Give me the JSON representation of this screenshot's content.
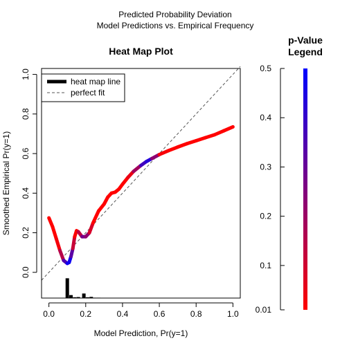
{
  "header": {
    "title_line1": "Predicted Probability Deviation",
    "title_line2": "Model Predictions vs. Empirical Frequency"
  },
  "chart_data": [
    {
      "type": "line",
      "title": "Heat Map Plot",
      "xlabel": "Model Prediction, Pr(y=1)",
      "ylabel": "Smoothed Empirical Pr(y=1)",
      "xlim": [
        -0.04,
        1.04
      ],
      "ylim": [
        -0.13,
        1.03
      ],
      "x_ticks": [
        0.0,
        0.2,
        0.4,
        0.6,
        0.8,
        1.0
      ],
      "x_tick_labels": [
        "0.0",
        "0.2",
        "0.4",
        "0.6",
        "0.8",
        "1.0"
      ],
      "y_ticks": [
        0.0,
        0.2,
        0.4,
        0.6,
        0.8,
        1.0
      ],
      "y_tick_labels": [
        "0.0",
        "0.2",
        "0.4",
        "0.6",
        "0.8",
        "1.0"
      ],
      "grid": false,
      "legend": {
        "position": "top-left",
        "entries": [
          {
            "label": "heat map line",
            "style": "thick-solid"
          },
          {
            "label": "perfect fit",
            "style": "dashed"
          }
        ]
      },
      "series": [
        {
          "name": "heat map line",
          "style": "thick-solid",
          "points": [
            {
              "x": 0.0,
              "y": 0.275,
              "p": 0.0
            },
            {
              "x": 0.02,
              "y": 0.23,
              "p": 0.0
            },
            {
              "x": 0.04,
              "y": 0.17,
              "p": 0.01
            },
            {
              "x": 0.06,
              "y": 0.11,
              "p": 0.05
            },
            {
              "x": 0.08,
              "y": 0.06,
              "p": 0.25
            },
            {
              "x": 0.1,
              "y": 0.045,
              "p": 0.45
            },
            {
              "x": 0.11,
              "y": 0.05,
              "p": 0.5
            },
            {
              "x": 0.12,
              "y": 0.08,
              "p": 0.45
            },
            {
              "x": 0.13,
              "y": 0.12,
              "p": 0.2
            },
            {
              "x": 0.14,
              "y": 0.18,
              "p": 0.03
            },
            {
              "x": 0.15,
              "y": 0.21,
              "p": 0.0
            },
            {
              "x": 0.16,
              "y": 0.205,
              "p": 0.02
            },
            {
              "x": 0.18,
              "y": 0.18,
              "p": 0.25
            },
            {
              "x": 0.2,
              "y": 0.18,
              "p": 0.3
            },
            {
              "x": 0.22,
              "y": 0.2,
              "p": 0.15
            },
            {
              "x": 0.24,
              "y": 0.25,
              "p": 0.02
            },
            {
              "x": 0.27,
              "y": 0.31,
              "p": 0.0
            },
            {
              "x": 0.3,
              "y": 0.345,
              "p": 0.0
            },
            {
              "x": 0.32,
              "y": 0.38,
              "p": 0.0
            },
            {
              "x": 0.34,
              "y": 0.4,
              "p": 0.0
            },
            {
              "x": 0.36,
              "y": 0.405,
              "p": 0.0
            },
            {
              "x": 0.38,
              "y": 0.42,
              "p": 0.0
            },
            {
              "x": 0.4,
              "y": 0.445,
              "p": 0.0
            },
            {
              "x": 0.43,
              "y": 0.48,
              "p": 0.02
            },
            {
              "x": 0.46,
              "y": 0.51,
              "p": 0.08
            },
            {
              "x": 0.5,
              "y": 0.54,
              "p": 0.3
            },
            {
              "x": 0.53,
              "y": 0.56,
              "p": 0.45
            },
            {
              "x": 0.56,
              "y": 0.575,
              "p": 0.4
            },
            {
              "x": 0.6,
              "y": 0.595,
              "p": 0.05
            },
            {
              "x": 0.65,
              "y": 0.615,
              "p": 0.0
            },
            {
              "x": 0.7,
              "y": 0.633,
              "p": 0.0
            },
            {
              "x": 0.75,
              "y": 0.65,
              "p": 0.0
            },
            {
              "x": 0.8,
              "y": 0.665,
              "p": 0.0
            },
            {
              "x": 0.85,
              "y": 0.68,
              "p": 0.0
            },
            {
              "x": 0.9,
              "y": 0.695,
              "p": 0.0
            },
            {
              "x": 0.95,
              "y": 0.715,
              "p": 0.0
            },
            {
              "x": 1.0,
              "y": 0.735,
              "p": 0.0
            }
          ]
        },
        {
          "name": "perfect fit",
          "style": "dashed",
          "points": [
            {
              "x": -0.04,
              "y": -0.04
            },
            {
              "x": 1.04,
              "y": 1.04
            }
          ]
        }
      ],
      "histogram": {
        "baseline": -0.13,
        "bars": [
          {
            "x": 0.1,
            "height": 0.1
          },
          {
            "x": 0.12,
            "height": 0.015
          },
          {
            "x": 0.14,
            "height": 0.004
          },
          {
            "x": 0.16,
            "height": 0.005
          },
          {
            "x": 0.19,
            "height": 0.023
          },
          {
            "x": 0.21,
            "height": 0.004
          },
          {
            "x": 0.23,
            "height": 0.006
          },
          {
            "x": 0.25,
            "height": 0.002
          },
          {
            "x": 0.27,
            "height": 0.002
          },
          {
            "x": 0.29,
            "height": 0.001
          },
          {
            "x": 0.31,
            "height": 0.001
          },
          {
            "x": 0.33,
            "height": 0.001
          }
        ]
      }
    },
    {
      "type": "heatmap",
      "title": "p-Value\nLegend",
      "ylim": [
        0.01,
        0.5
      ],
      "y_ticks": [
        0.5,
        0.4,
        0.3,
        0.2,
        0.1,
        0.01
      ],
      "y_tick_labels": [
        "0.5",
        "0.4",
        "0.3",
        "0.2",
        "0.1",
        "0.01"
      ],
      "gradient": {
        "low_color": "#ff0000",
        "high_color": "#0000ff"
      }
    }
  ]
}
